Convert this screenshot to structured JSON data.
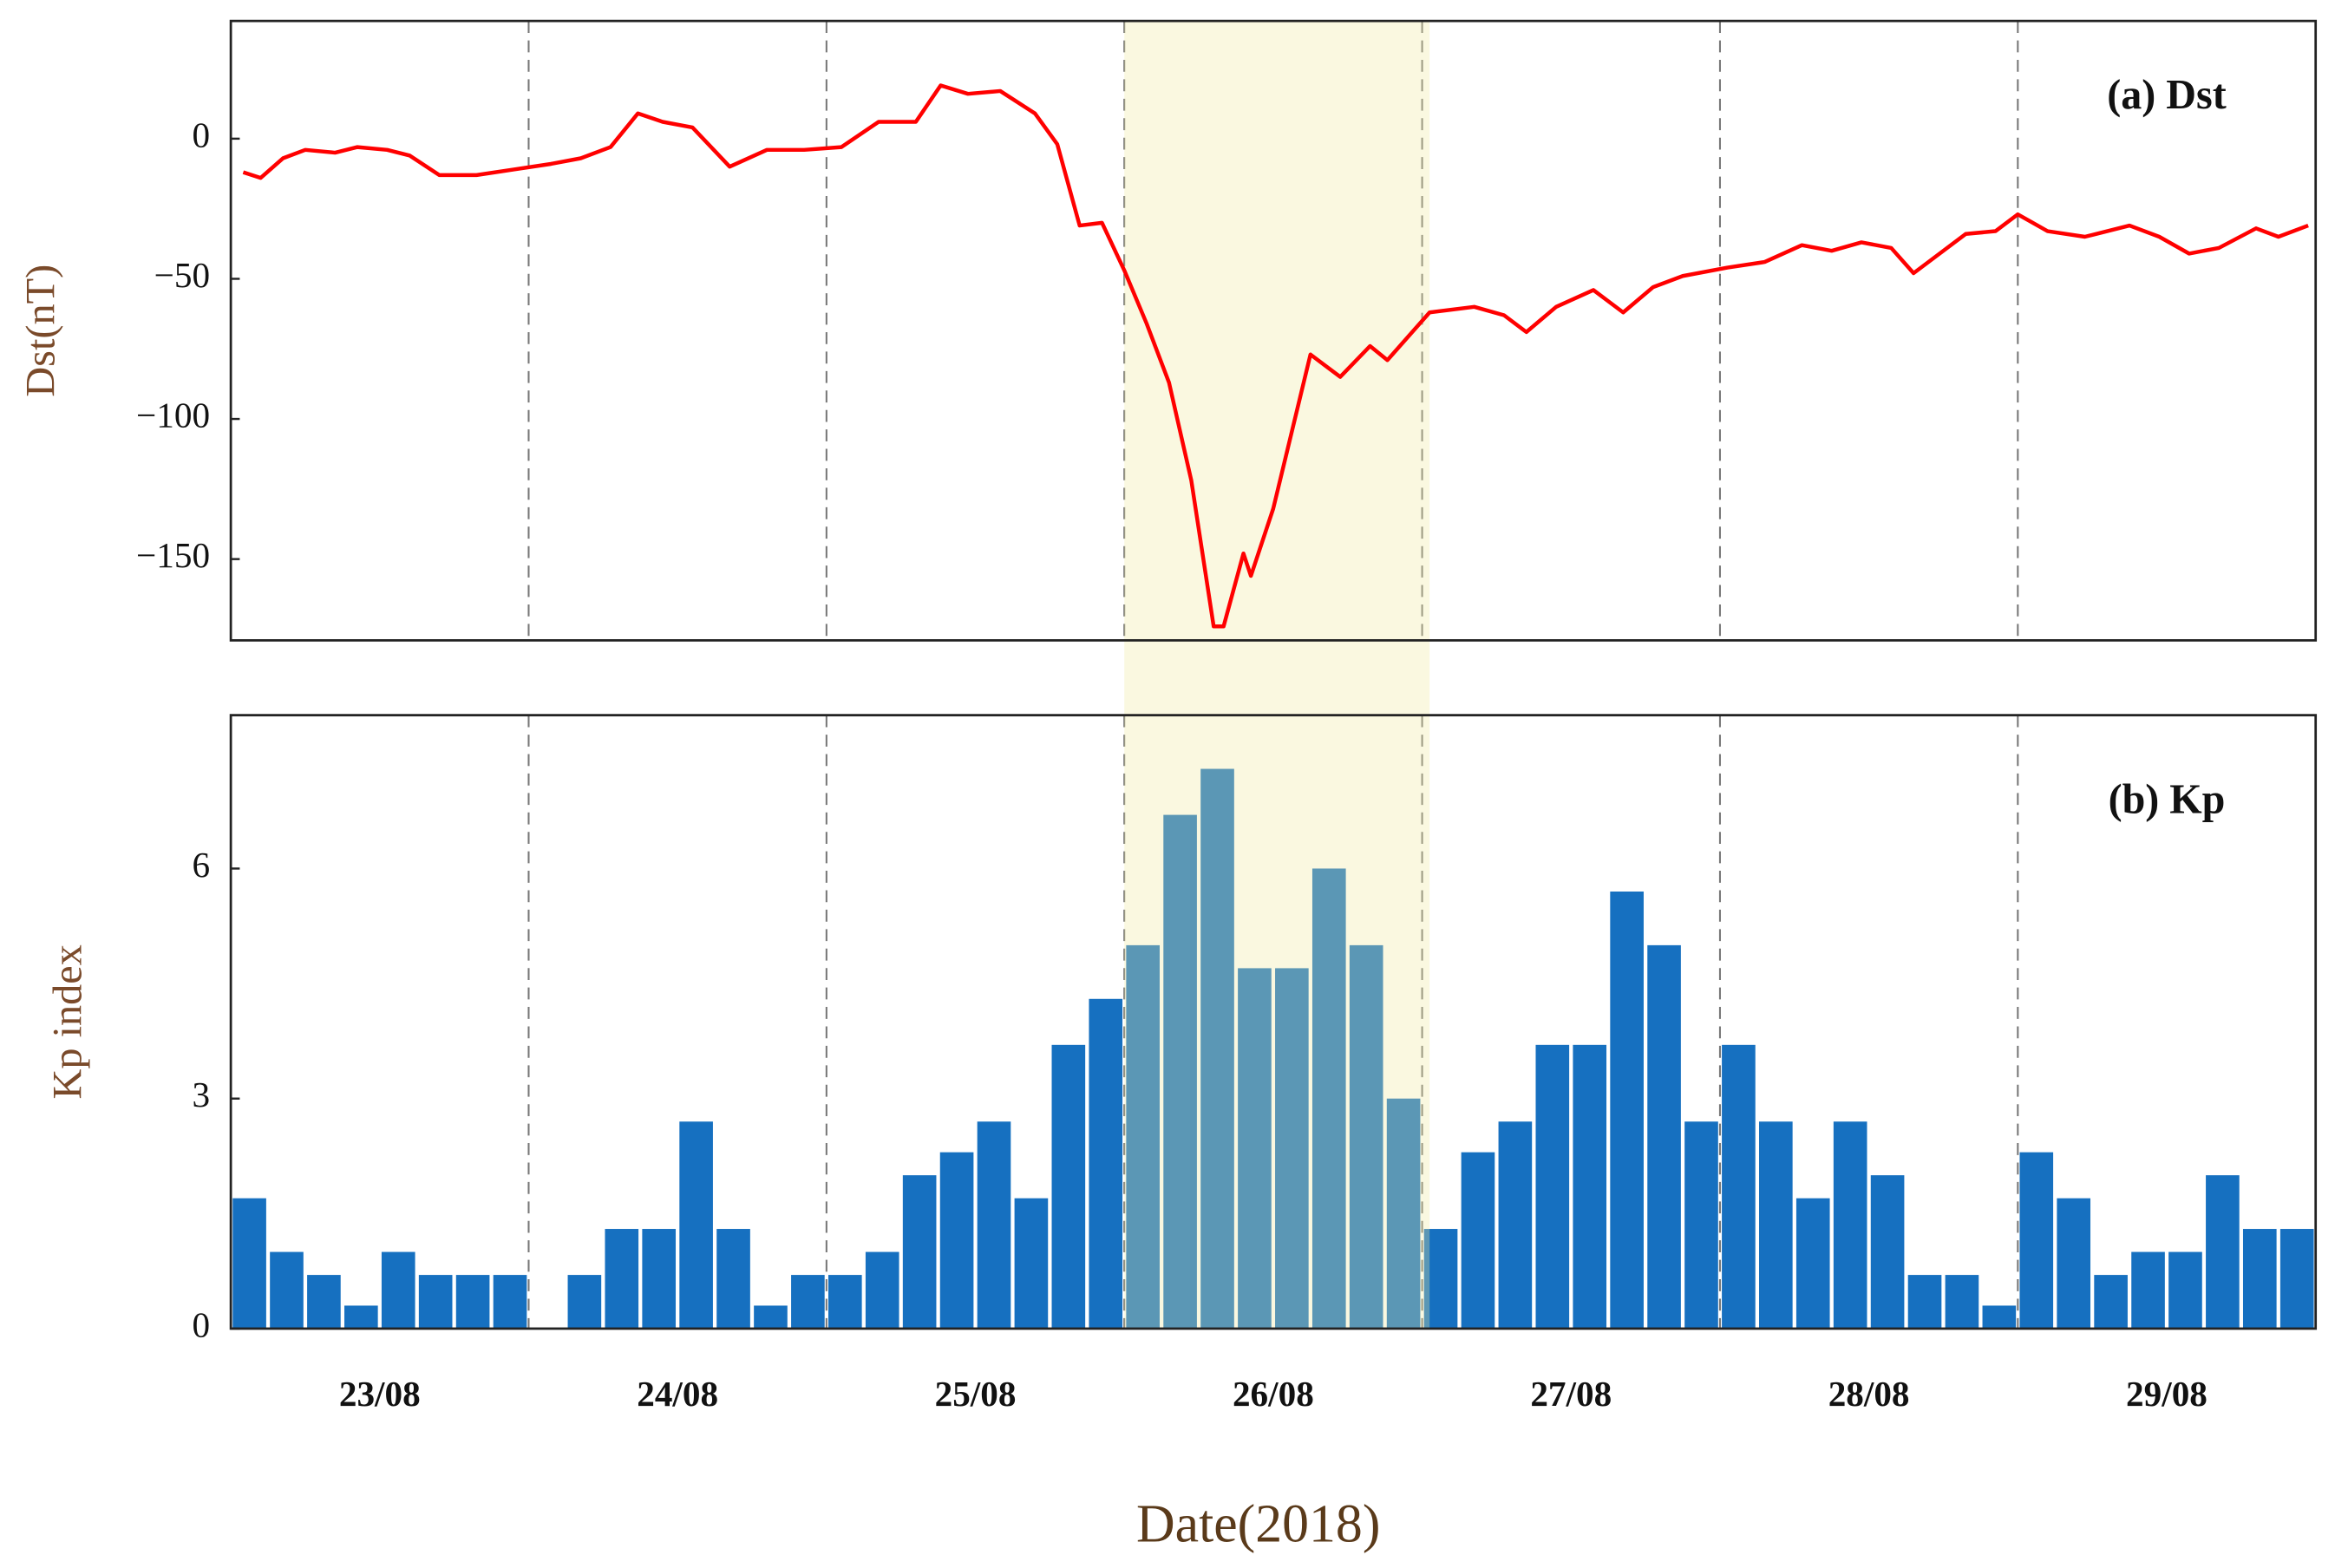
{
  "chart_data": [
    {
      "type": "line",
      "annotation": "(a) Dst",
      "y_label": "Dst(nT)",
      "xlim": [
        0,
        168
      ],
      "ylim": [
        -179,
        42
      ],
      "yticks": [
        0,
        {
          "value": -50,
          "label": "−50"
        },
        {
          "value": -100,
          "label": "−100"
        },
        {
          "value": -150,
          "label": "−150"
        }
      ],
      "xgrid": [
        24,
        48,
        72,
        96,
        120,
        144
      ],
      "highlight": [
        72,
        96.6
      ],
      "highlight_color": "#f0e8a0",
      "series": [
        {
          "name": "Dst",
          "color": "#ff0000",
          "x": [
            1.0,
            2.4,
            4.2,
            6.0,
            8.4,
            10.2,
            12.6,
            14.4,
            16.8,
            19.8,
            22.8,
            25.8,
            28.2,
            30.6,
            32.8,
            34.8,
            37.2,
            40.2,
            43.2,
            46.2,
            49.2,
            52.2,
            55.2,
            57.2,
            59.4,
            62.0,
            64.8,
            66.6,
            68.4,
            70.2,
            72.0,
            73.8,
            75.6,
            77.4,
            79.2,
            80.0,
            81.6,
            82.2,
            84.0,
            87.0,
            89.4,
            91.8,
            93.2,
            96.6,
            100.2,
            102.6,
            104.4,
            106.8,
            109.8,
            112.2,
            114.6,
            117.0,
            120.6,
            123.6,
            126.6,
            129.0,
            131.4,
            133.8,
            135.6,
            137.4,
            139.8,
            142.2,
            144.0,
            146.4,
            149.4,
            153.0,
            155.4,
            157.8,
            160.2,
            163.2,
            165.0,
            167.4
          ],
          "values": [
            -12,
            -14,
            -7,
            -4,
            -5,
            -3,
            -4,
            -6,
            -13,
            -13,
            -11,
            -9,
            -7,
            -3,
            9,
            6,
            4,
            -10,
            -4,
            -4,
            -3,
            6,
            6,
            19,
            16,
            17,
            9,
            -2,
            -31,
            -30,
            -47,
            -66,
            -87,
            -122,
            -174,
            -174,
            -148,
            -156,
            -132,
            -77,
            -85,
            -74,
            -79,
            -62,
            -60,
            -63,
            -69,
            -60,
            -54,
            -62,
            -53,
            -49,
            -46,
            -44,
            -38,
            -40,
            -37,
            -39,
            -48,
            -42,
            -34,
            -33,
            -27,
            -33,
            -35,
            -31,
            -35,
            -41,
            -39,
            -32,
            -35,
            -31
          ]
        }
      ]
    },
    {
      "type": "bar",
      "annotation": "(b) Kp",
      "y_label": "Kp index",
      "x_label": "Date(2018)",
      "xlim": [
        0,
        168
      ],
      "ylim": [
        0,
        8
      ],
      "yticks": [
        0,
        3,
        6
      ],
      "xticks": [
        {
          "value": 12,
          "label": "23/08"
        },
        {
          "value": 36,
          "label": "24/08"
        },
        {
          "value": 60,
          "label": "25/08"
        },
        {
          "value": 84,
          "label": "26/08"
        },
        {
          "value": 108,
          "label": "27/08"
        },
        {
          "value": 132,
          "label": "28/08"
        },
        {
          "value": 156,
          "label": "29/08"
        }
      ],
      "xgrid": [
        24,
        48,
        72,
        96,
        120,
        144
      ],
      "color": "#1670c0",
      "x": [
        1.5,
        4.5,
        7.5,
        10.5,
        13.5,
        16.5,
        19.5,
        22.5,
        25.5,
        28.5,
        31.5,
        34.5,
        37.5,
        40.5,
        43.5,
        46.5,
        49.5,
        52.5,
        55.5,
        58.5,
        61.5,
        64.5,
        67.5,
        70.5,
        73.5,
        76.5,
        79.5,
        82.5,
        85.5,
        88.5,
        91.5,
        94.5,
        97.5,
        100.5,
        103.5,
        106.5,
        109.5,
        112.5,
        115.5,
        118.5,
        121.5,
        124.5,
        127.5,
        130.5,
        133.5,
        136.5,
        139.5,
        142.5,
        145.5,
        148.5,
        151.5,
        154.5,
        157.5,
        160.5,
        163.5,
        166.5
      ],
      "values": [
        1.7,
        1.0,
        0.7,
        0.3,
        1.0,
        0.7,
        0.7,
        0.7,
        0,
        0.7,
        1.3,
        1.3,
        2.7,
        1.3,
        0.3,
        0.7,
        0.7,
        1.0,
        2.0,
        2.3,
        2.7,
        1.7,
        3.7,
        4.3,
        5.0,
        6.7,
        7.3,
        4.7,
        4.7,
        6.0,
        5.0,
        3.0,
        1.3,
        2.3,
        2.7,
        3.7,
        3.7,
        5.7,
        5.0,
        2.7,
        3.7,
        2.7,
        1.7,
        2.7,
        2.0,
        0.7,
        0.7,
        0.3,
        2.3,
        1.7,
        0.7,
        1.0,
        1.0,
        2.0,
        1.3,
        1.3
      ]
    }
  ]
}
